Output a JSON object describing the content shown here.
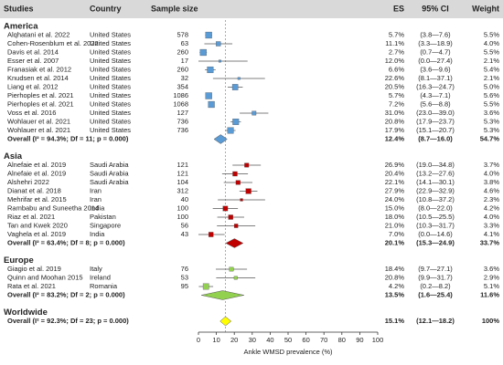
{
  "chart_data": {
    "type": "forest",
    "columns": [
      "Studies",
      "Country",
      "Sample size",
      "ES",
      "95% CI",
      "Weight"
    ],
    "xlabel": "Ankle WMSD prevalence (%)",
    "xlim": [
      0,
      100
    ],
    "xticks": [
      0,
      10,
      20,
      30,
      40,
      50,
      60,
      70,
      80,
      90,
      100
    ],
    "groups": [
      {
        "name": "America",
        "color": "#5b9bd5",
        "studies": [
          {
            "study": "Alqhatani et al. 2022",
            "country": "United States",
            "n": 578,
            "es": 5.7,
            "es_label": "5.7%",
            "ci": [
              3.8,
              7.6
            ],
            "ci_label": "(3.8—7.6)",
            "weight": 5.5,
            "weight_label": "5.5%"
          },
          {
            "study": "Cohen-Rosenblum et al. 2022",
            "country": "United States",
            "n": 63,
            "es": 11.1,
            "es_label": "11.1%",
            "ci": [
              3.3,
              18.9
            ],
            "ci_label": "(3.3—18.9)",
            "weight": 4.0,
            "weight_label": "4.0%"
          },
          {
            "study": "Davis et al. 2014",
            "country": "United States",
            "n": 260,
            "es": 2.7,
            "es_label": "2.7%",
            "ci": [
              0.7,
              4.7
            ],
            "ci_label": "(0.7—4.7)",
            "weight": 5.5,
            "weight_label": "5.5%"
          },
          {
            "study": "Esser et al. 2007",
            "country": "United States",
            "n": 17,
            "es": 12.0,
            "es_label": "12.0%",
            "ci": [
              0.0,
              27.4
            ],
            "ci_label": "(0.0—27.4)",
            "weight": 2.1,
            "weight_label": "2.1%"
          },
          {
            "study": "Franasiak et al. 2012",
            "country": "United States",
            "n": 260,
            "es": 6.6,
            "es_label": "6.6%",
            "ci": [
              3.6,
              9.6
            ],
            "ci_label": "(3.6—9.6)",
            "weight": 5.4,
            "weight_label": "5.4%"
          },
          {
            "study": "Knudsen et al. 2014",
            "country": "United States",
            "n": 32,
            "es": 22.6,
            "es_label": "22.6%",
            "ci": [
              8.1,
              37.1
            ],
            "ci_label": "(8.1—37.1)",
            "weight": 2.1,
            "weight_label": "2.1%"
          },
          {
            "study": "Liang et al. 2012",
            "country": "United States",
            "n": 354,
            "es": 20.5,
            "es_label": "20.5%",
            "ci": [
              16.3,
              24.7
            ],
            "ci_label": "(16.3—24.7)",
            "weight": 5.0,
            "weight_label": "5.0%"
          },
          {
            "study": "Pierhoples et al. 2021",
            "country": "United States",
            "n": 1086,
            "es": 5.7,
            "es_label": "5.7%",
            "ci": [
              4.3,
              7.1
            ],
            "ci_label": "(4.3—7.1)",
            "weight": 5.6,
            "weight_label": "5.6%"
          },
          {
            "study": "Pierhoples et al. 2021",
            "country": "United States",
            "n": 1068,
            "es": 7.2,
            "es_label": "7.2%",
            "ci": [
              5.6,
              8.8
            ],
            "ci_label": "(5.6—8.8)",
            "weight": 5.5,
            "weight_label": "5.5%"
          },
          {
            "study": "Voss et al. 2016",
            "country": "United States",
            "n": 127,
            "es": 31.0,
            "es_label": "31.0%",
            "ci": [
              23.0,
              39.0
            ],
            "ci_label": "(23.0—39.0)",
            "weight": 3.6,
            "weight_label": "3.6%"
          },
          {
            "study": "Wohlauer et al. 2021",
            "country": "United States",
            "n": 736,
            "es": 20.8,
            "es_label": "20.8%",
            "ci": [
              17.9,
              23.7
            ],
            "ci_label": "(17.9—23.7)",
            "weight": 5.3,
            "weight_label": "5.3%"
          },
          {
            "study": "Wohlauer et al. 2021",
            "country": "United States",
            "n": 736,
            "es": 17.9,
            "es_label": "17.9%",
            "ci": [
              15.1,
              20.7
            ],
            "ci_label": "(15.1—20.7)",
            "weight": 5.3,
            "weight_label": "5.3%"
          }
        ],
        "overall": {
          "label": "Overall (I² = 94.3%; Df = 11; p = 0.000)",
          "es": 12.4,
          "es_label": "12.4%",
          "ci": [
            8.7,
            16.0
          ],
          "ci_label": "(8.7—16.0)",
          "weight": 54.7,
          "weight_label": "54.7%"
        }
      },
      {
        "name": "Asia",
        "color": "#c00000",
        "studies": [
          {
            "study": "Alnefaie et al. 2019",
            "country": "Saudi Arabia",
            "n": 121,
            "es": 26.9,
            "es_label": "26.9%",
            "ci": [
              19.0,
              34.8
            ],
            "ci_label": "(19.0—34.8)",
            "weight": 3.7,
            "weight_label": "3.7%"
          },
          {
            "study": "Alnefaie et al. 2019",
            "country": "Saudi Arabia",
            "n": 121,
            "es": 20.4,
            "es_label": "20.4%",
            "ci": [
              13.2,
              27.6
            ],
            "ci_label": "(13.2—27.6)",
            "weight": 4.0,
            "weight_label": "4.0%"
          },
          {
            "study": "Alshehri 2022",
            "country": "Saudi Arabia",
            "n": 104,
            "es": 22.1,
            "es_label": "22.1%",
            "ci": [
              14.1,
              30.1
            ],
            "ci_label": "(14.1—30.1)",
            "weight": 3.8,
            "weight_label": "3.8%"
          },
          {
            "study": "Dianat et al. 2018",
            "country": "Iran",
            "n": 312,
            "es": 27.9,
            "es_label": "27.9%",
            "ci": [
              22.9,
              32.9
            ],
            "ci_label": "(22.9—32.9)",
            "weight": 4.6,
            "weight_label": "4.6%"
          },
          {
            "study": "Mehrifar et al. 2015",
            "country": "Iran",
            "n": 40,
            "es": 24.0,
            "es_label": "24.0%",
            "ci": [
              10.8,
              37.2
            ],
            "ci_label": "(10.8—37.2)",
            "weight": 2.3,
            "weight_label": "2.3%"
          },
          {
            "study": "Rambabu and Suneetha 2014",
            "country": "India",
            "n": 100,
            "es": 15.0,
            "es_label": "15.0%",
            "ci": [
              8.0,
              22.0
            ],
            "ci_label": "(8.0—22.0)",
            "weight": 4.2,
            "weight_label": "4.2%"
          },
          {
            "study": "Riaz et al. 2021",
            "country": "Pakistan",
            "n": 100,
            "es": 18.0,
            "es_label": "18.0%",
            "ci": [
              10.5,
              25.5
            ],
            "ci_label": "(10.5—25.5)",
            "weight": 4.0,
            "weight_label": "4.0%"
          },
          {
            "study": "Tan and Kwek 2020",
            "country": "Singapore",
            "n": 56,
            "es": 21.0,
            "es_label": "21.0%",
            "ci": [
              10.3,
              31.7
            ],
            "ci_label": "(10.3—31.7)",
            "weight": 3.3,
            "weight_label": "3.3%"
          },
          {
            "study": "Vaghela et al. 2019",
            "country": "India",
            "n": 43,
            "es": 7.0,
            "es_label": "7.0%",
            "ci": [
              0.0,
              14.6
            ],
            "ci_label": "(0.0—14.6)",
            "weight": 4.1,
            "weight_label": "4.1%"
          }
        ],
        "overall": {
          "label": "Overall (I² = 63.4%; Df = 8; p = 0.000)",
          "es": 20.1,
          "es_label": "20.1%",
          "ci": [
            15.3,
            24.9
          ],
          "ci_label": "(15.3—24.9)",
          "weight": 33.7,
          "weight_label": "33.7%"
        }
      },
      {
        "name": "Europe",
        "color": "#92d050",
        "studies": [
          {
            "study": "Giagio et al. 2019",
            "country": "Italy",
            "n": 76,
            "es": 18.4,
            "es_label": "18.4%",
            "ci": [
              9.7,
              27.1
            ],
            "ci_label": "(9.7—27.1)",
            "weight": 3.6,
            "weight_label": "3.6%"
          },
          {
            "study": "Quinn and Moohan 2015",
            "country": "Ireland",
            "n": 53,
            "es": 20.8,
            "es_label": "20.8%",
            "ci": [
              9.9,
              31.7
            ],
            "ci_label": "(9.9—31.7)",
            "weight": 2.9,
            "weight_label": "2.9%"
          },
          {
            "study": "Rata et al. 2021",
            "country": "Romania",
            "n": 95,
            "es": 4.2,
            "es_label": "4.2%",
            "ci": [
              0.2,
              8.2
            ],
            "ci_label": "(0.2—8.2)",
            "weight": 5.1,
            "weight_label": "5.1%"
          }
        ],
        "overall": {
          "label": "Overall (I² = 83.2%; Df = 2; p = 0.000)",
          "es": 13.5,
          "es_label": "13.5%",
          "ci": [
            1.6,
            25.4
          ],
          "ci_label": "(1.6—25.4)",
          "weight": 11.6,
          "weight_label": "11.6%"
        }
      },
      {
        "name": "Worldwide",
        "color": "#ffff00",
        "studies": [],
        "overall": {
          "label": "Overall (I² = 92.3%; Df = 23; p = 0.000)",
          "es": 15.1,
          "es_label": "15.1%",
          "ci": [
            12.1,
            18.2
          ],
          "ci_label": "(12.1—18.2)",
          "weight": 100,
          "weight_label": "100%"
        }
      }
    ]
  }
}
